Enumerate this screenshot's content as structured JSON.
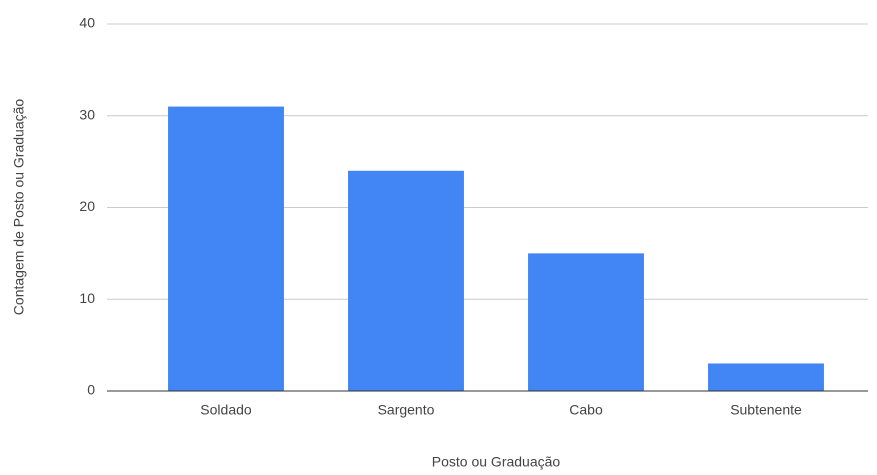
{
  "chart_data": {
    "type": "bar",
    "x_label": "Posto ou Graduação",
    "y_label": "Contagem de Posto ou Graduação",
    "categories": [
      "Soldado",
      "Sargento",
      "Cabo",
      "Subtenente"
    ],
    "values": [
      31,
      24,
      15,
      3
    ],
    "color": "#4285f4",
    "ylim": [
      0,
      40
    ],
    "yticks": [
      0,
      10,
      20,
      30,
      40
    ],
    "grid": true
  }
}
